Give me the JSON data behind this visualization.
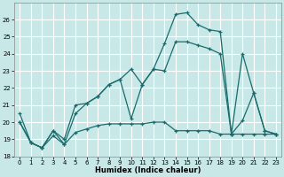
{
  "xlabel": "Humidex (Indice chaleur)",
  "xlim": [
    -0.5,
    23.5
  ],
  "ylim": [
    18,
    27
  ],
  "yticks": [
    18,
    19,
    20,
    21,
    22,
    23,
    24,
    25,
    26
  ],
  "xticks": [
    0,
    1,
    2,
    3,
    4,
    5,
    6,
    7,
    8,
    9,
    10,
    11,
    12,
    13,
    14,
    15,
    16,
    17,
    18,
    19,
    20,
    21,
    22,
    23
  ],
  "bg_color": "#c8e8e8",
  "grid_color": "#ffffff",
  "line_color": "#1a6b6b",
  "line1_x": [
    0,
    1,
    2,
    3,
    4,
    5,
    6,
    7,
    8,
    9,
    10,
    11,
    12,
    13,
    14,
    15,
    16,
    17,
    18,
    19,
    20,
    21,
    22,
    23
  ],
  "line1_y": [
    20.5,
    18.8,
    18.5,
    19.5,
    19.0,
    21.0,
    21.1,
    21.5,
    22.2,
    22.5,
    23.1,
    22.2,
    23.1,
    24.6,
    26.3,
    26.4,
    25.7,
    25.4,
    25.3,
    19.3,
    24.0,
    21.7,
    19.5,
    19.3
  ],
  "line2_x": [
    0,
    1,
    2,
    3,
    4,
    5,
    6,
    7,
    8,
    9,
    10,
    11,
    12,
    13,
    14,
    15,
    16,
    17,
    18,
    19,
    20,
    21,
    22,
    23
  ],
  "line2_y": [
    20.0,
    18.8,
    18.5,
    19.2,
    18.7,
    19.4,
    19.6,
    19.8,
    19.9,
    19.9,
    19.9,
    19.9,
    20.0,
    20.0,
    19.5,
    19.5,
    19.5,
    19.5,
    19.3,
    19.3,
    19.3,
    19.3,
    19.3,
    19.3
  ],
  "line3_x": [
    0,
    1,
    2,
    3,
    4,
    5,
    6,
    7,
    8,
    9,
    10,
    11,
    12,
    13,
    14,
    15,
    16,
    17,
    18,
    19,
    20,
    21,
    22,
    23
  ],
  "line3_y": [
    20.0,
    18.8,
    18.5,
    19.5,
    18.7,
    20.5,
    21.1,
    21.5,
    22.2,
    22.5,
    20.2,
    22.2,
    23.1,
    23.0,
    24.7,
    24.7,
    24.5,
    24.3,
    24.0,
    19.3,
    20.1,
    21.7,
    19.5,
    19.3
  ],
  "title_fontsize": 6,
  "tick_fontsize": 5,
  "xlabel_fontsize": 6
}
